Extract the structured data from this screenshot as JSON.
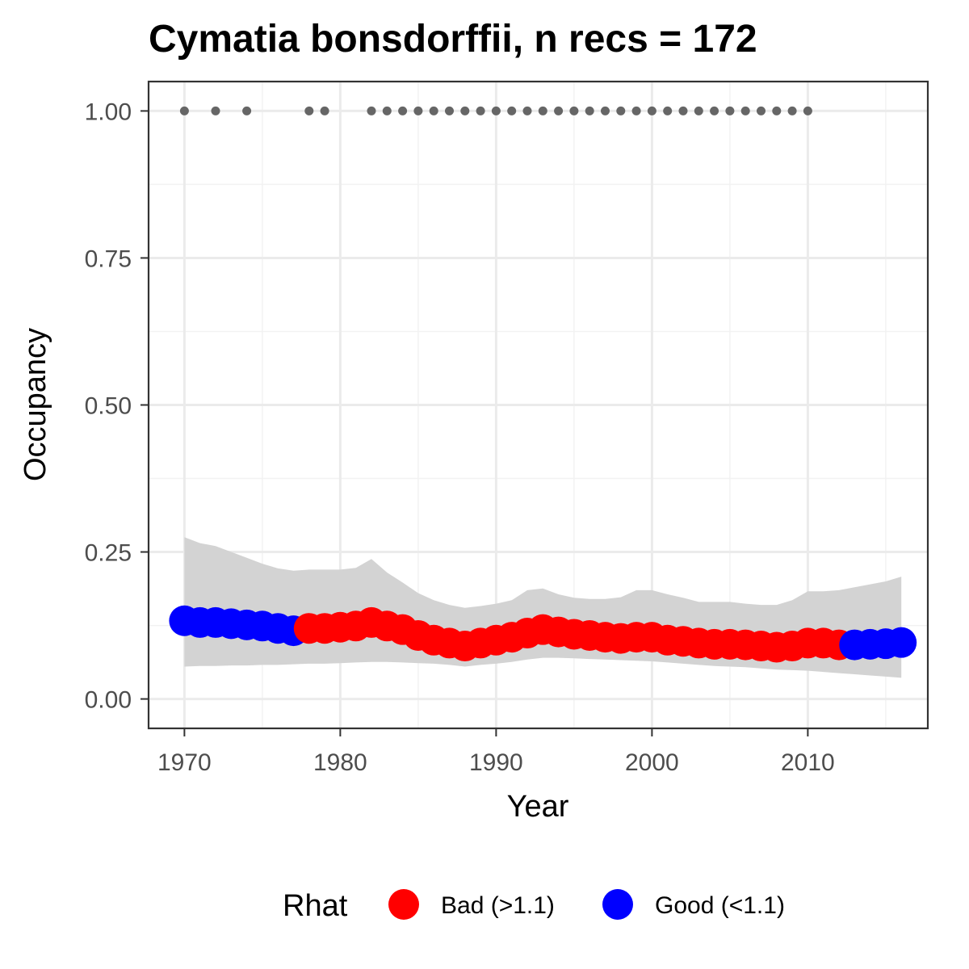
{
  "chart_data": {
    "type": "scatter",
    "title": "Cymatia bonsdorffii, n recs = 172",
    "xlabel": "Year",
    "ylabel": "Occupancy",
    "xlim": [
      1967.7,
      2017.7
    ],
    "ylim": [
      -0.05,
      1.05
    ],
    "x_ticks": [
      1970,
      1980,
      1990,
      2000,
      2010
    ],
    "x_tick_labels": [
      "1970",
      "1980",
      "1990",
      "2000",
      "2010"
    ],
    "y_ticks": [
      0,
      0.25,
      0.5,
      0.75,
      1.0
    ],
    "y_tick_labels": [
      "0.00",
      "0.25",
      "0.50",
      "0.75",
      "1.00"
    ],
    "grid": true,
    "legend": {
      "title": "Rhat",
      "position": "bottom",
      "entries": [
        {
          "label": "Bad (>1.1)",
          "color": "#ff0000"
        },
        {
          "label": "Good (<1.1)",
          "color": "#0000ff"
        }
      ]
    },
    "record_years": [
      1970,
      1972,
      1974,
      1978,
      1979,
      1982,
      1983,
      1984,
      1985,
      1986,
      1987,
      1988,
      1989,
      1990,
      1991,
      1992,
      1993,
      1994,
      1995,
      1996,
      1997,
      1998,
      1999,
      2000,
      2001,
      2002,
      2003,
      2004,
      2005,
      2006,
      2007,
      2008,
      2009,
      2010
    ],
    "record_value": 1.0,
    "record_color": "#666666",
    "ribbon_color": "#d3d3d3",
    "series": [
      {
        "years": [
          1970,
          1971,
          1972,
          1973,
          1974,
          1975,
          1976,
          1977,
          1978,
          1979,
          1980,
          1981,
          1982,
          1983,
          1984,
          1985,
          1986,
          1987,
          1988,
          1989,
          1990,
          1991,
          1992,
          1993,
          1994,
          1995,
          1996,
          1997,
          1998,
          1999,
          2000,
          2001,
          2002,
          2003,
          2004,
          2005,
          2006,
          2007,
          2008,
          2009,
          2010,
          2011,
          2012,
          2013,
          2014,
          2015,
          2016
        ],
        "mean": [
          0.133,
          0.13,
          0.13,
          0.128,
          0.126,
          0.124,
          0.12,
          0.116,
          0.12,
          0.12,
          0.122,
          0.124,
          0.13,
          0.124,
          0.118,
          0.108,
          0.1,
          0.095,
          0.09,
          0.095,
          0.1,
          0.105,
          0.112,
          0.118,
          0.114,
          0.11,
          0.108,
          0.105,
          0.103,
          0.105,
          0.105,
          0.1,
          0.098,
          0.095,
          0.093,
          0.093,
          0.092,
          0.09,
          0.088,
          0.09,
          0.095,
          0.095,
          0.092,
          0.092,
          0.093,
          0.094,
          0.096
        ],
        "upper": [
          0.275,
          0.265,
          0.26,
          0.25,
          0.24,
          0.23,
          0.222,
          0.218,
          0.22,
          0.22,
          0.22,
          0.223,
          0.238,
          0.215,
          0.198,
          0.18,
          0.168,
          0.16,
          0.155,
          0.158,
          0.162,
          0.168,
          0.185,
          0.188,
          0.178,
          0.172,
          0.17,
          0.17,
          0.173,
          0.185,
          0.185,
          0.178,
          0.172,
          0.165,
          0.165,
          0.165,
          0.162,
          0.16,
          0.16,
          0.168,
          0.183,
          0.183,
          0.185,
          0.19,
          0.195,
          0.2,
          0.208
        ],
        "lower": [
          0.055,
          0.056,
          0.056,
          0.057,
          0.057,
          0.058,
          0.058,
          0.059,
          0.06,
          0.06,
          0.061,
          0.062,
          0.063,
          0.063,
          0.062,
          0.061,
          0.06,
          0.058,
          0.055,
          0.058,
          0.06,
          0.063,
          0.067,
          0.07,
          0.07,
          0.069,
          0.068,
          0.067,
          0.066,
          0.065,
          0.064,
          0.062,
          0.06,
          0.058,
          0.056,
          0.055,
          0.054,
          0.052,
          0.05,
          0.049,
          0.048,
          0.046,
          0.044,
          0.042,
          0.04,
          0.038,
          0.036
        ],
        "rhat": [
          "good",
          "good",
          "good",
          "good",
          "good",
          "good",
          "good",
          "good",
          "bad",
          "bad",
          "bad",
          "bad",
          "bad",
          "bad",
          "bad",
          "bad",
          "bad",
          "bad",
          "bad",
          "bad",
          "bad",
          "bad",
          "bad",
          "bad",
          "bad",
          "bad",
          "bad",
          "bad",
          "bad",
          "bad",
          "bad",
          "bad",
          "bad",
          "bad",
          "bad",
          "bad",
          "bad",
          "bad",
          "bad",
          "bad",
          "bad",
          "bad",
          "bad",
          "good",
          "good",
          "good",
          "good"
        ]
      }
    ]
  }
}
